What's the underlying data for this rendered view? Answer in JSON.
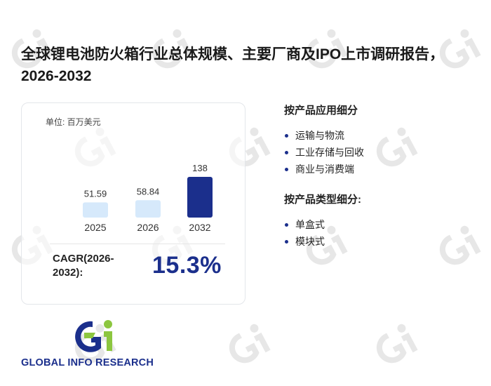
{
  "page_title": "全球锂电池防火箱行业总体规模、主要厂商及IPO上市调研报告，2026-2032",
  "brand": {
    "name": "GLOBAL INFO RESEARCH",
    "primary_color": "#1b2f8c",
    "accent_color": "#8cc63f"
  },
  "card": {
    "unit_label": "单位: 百万美元",
    "cagr_label": "CAGR(2026-2032):",
    "cagr_value": "15.3%"
  },
  "chart_data": {
    "type": "bar",
    "categories": [
      "2025",
      "2026",
      "2032"
    ],
    "values": [
      51.59,
      58.84,
      138
    ],
    "value_labels": [
      "51.59",
      "58.84",
      "138"
    ],
    "ylim": [
      0,
      138
    ],
    "title": "",
    "xlabel": "",
    "ylabel": "",
    "grid": false,
    "bar_colors": [
      "#d6e9fb",
      "#d6e9fb",
      "#1b2f8c"
    ]
  },
  "segments": [
    {
      "title": "按产品应用细分",
      "items": [
        "运输与物流",
        "工业存储与回收",
        "商业与消费端"
      ]
    },
    {
      "title": "按产品类型细分:",
      "items": [
        "单盒式",
        "模块式"
      ]
    }
  ]
}
